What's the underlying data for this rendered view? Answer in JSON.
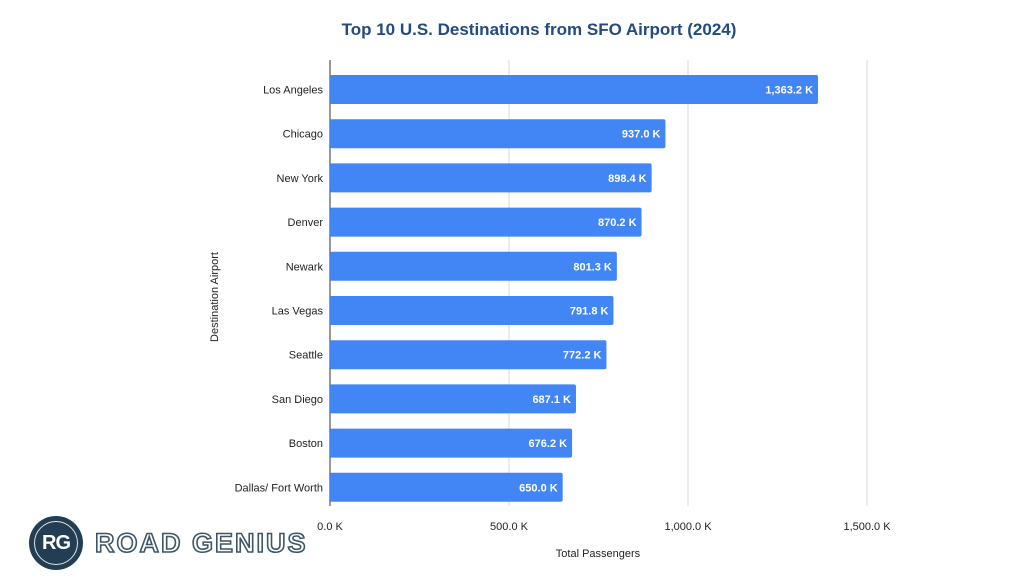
{
  "chart_data": {
    "type": "bar",
    "orientation": "horizontal",
    "title": "Top 10 U.S. Destinations from SFO Airport (2024)",
    "xlabel": "Total Passengers",
    "ylabel": "Destination Airport",
    "categories": [
      "Los Angeles",
      "Chicago",
      "New York",
      "Denver",
      "Newark",
      "Las Vegas",
      "Seattle",
      "San Diego",
      "Boston",
      "Dallas/ Fort Worth"
    ],
    "values": [
      1363.2,
      937.0,
      898.4,
      870.2,
      801.3,
      791.8,
      772.2,
      687.1,
      676.2,
      650.0
    ],
    "data_labels": [
      "1,363.2 K",
      "937.0 K",
      "898.4 K",
      "870.2 K",
      "801.3 K",
      "791.8 K",
      "772.2 K",
      "687.1 K",
      "676.2 K",
      "650.0 K"
    ],
    "xticks": [
      0,
      500,
      1000,
      1500
    ],
    "xtick_labels": [
      "0.0 K",
      "500.0 K",
      "1,000.0 K",
      "1,500.0 K"
    ],
    "xlim": [
      0,
      1900
    ],
    "grid": true,
    "bar_color": "#4285f4"
  },
  "logo": {
    "mark": "RG",
    "text": "ROAD GENIUS"
  }
}
